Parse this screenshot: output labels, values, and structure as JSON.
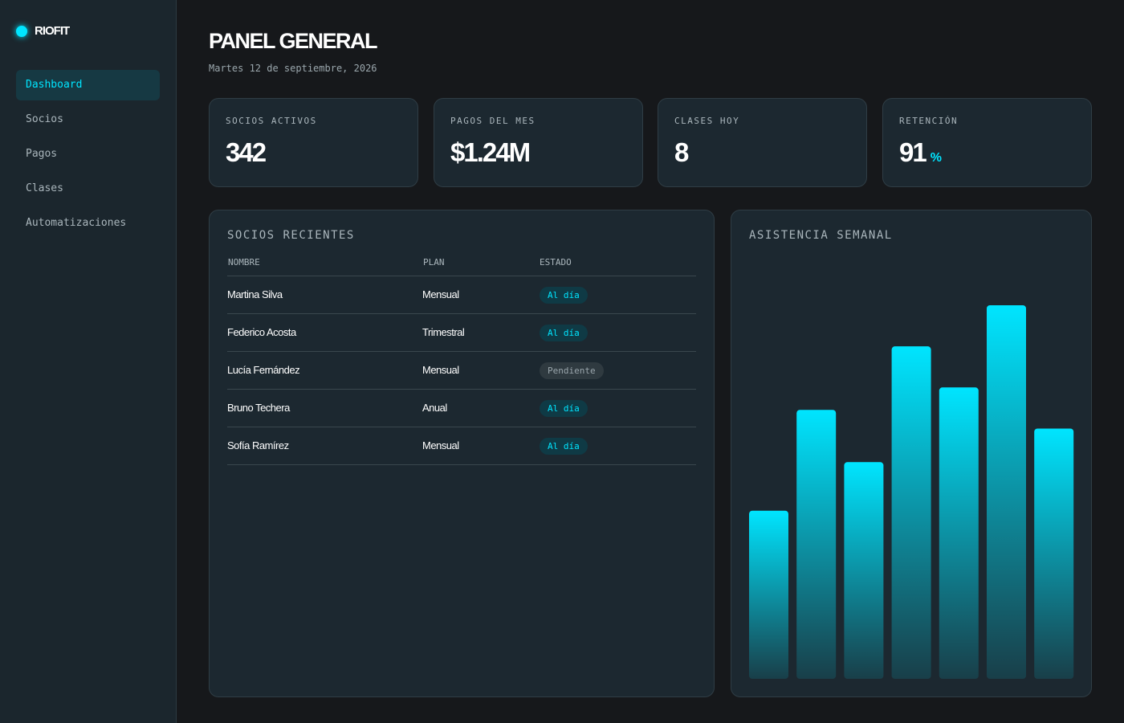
{
  "sidebar": {
    "brand": "RIOFIT",
    "nav": [
      "Dashboard",
      "Socios",
      "Pagos",
      "Clases",
      "Automatizaciones"
    ],
    "active": 0
  },
  "header": {
    "title": "PANEL GENERAL",
    "date": "Martes 12 de septiembre, 2026"
  },
  "kpis": [
    {
      "label": "SOCIOS ACTIVOS",
      "value": "342"
    },
    {
      "label": "PAGOS DEL MES",
      "value": "$1.24M"
    },
    {
      "label": "CLASES HOY",
      "value": "8"
    },
    {
      "label": "RETENCIÓN",
      "value": "91",
      "unit": "%"
    }
  ],
  "table": {
    "title": "SOCIOS RECIENTES",
    "columns": [
      "NOMBRE",
      "PLAN",
      "ESTADO"
    ],
    "rows": [
      [
        "Martina Silva",
        "Mensual",
        "Al día"
      ],
      [
        "Federico Acosta",
        "Trimestral",
        "Al día"
      ],
      [
        "Lucía Fernández",
        "Mensual",
        "Pendiente"
      ],
      [
        "Bruno Techera",
        "Anual",
        "Al día"
      ],
      [
        "Sofía Ramírez",
        "Mensual",
        "Al día"
      ]
    ]
  },
  "chart_data": {
    "type": "bar",
    "title": "ASISTENCIA SEMANAL",
    "values": [
      45,
      72,
      58,
      89,
      78,
      100,
      67
    ],
    "ylim": [
      0,
      100
    ],
    "color": "#00e5ff"
  }
}
